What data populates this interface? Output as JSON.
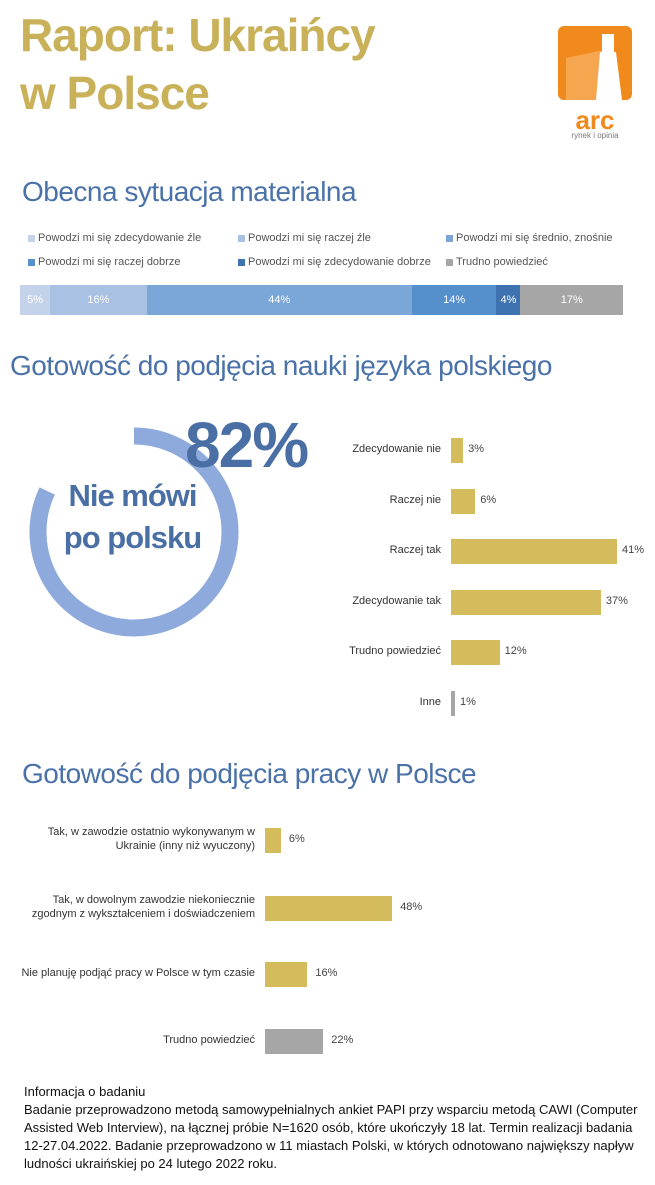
{
  "header": {
    "title_line1": "Raport: Ukraińcy",
    "title_line2": "w Polsce",
    "logo_text": "arc",
    "logo_subtext": "rynek i opinia"
  },
  "colors": {
    "gold": "#c9b15a",
    "blue_title": "#4a72a8",
    "gray": "#a6a6a6",
    "logo": "#f08a1c",
    "donut": "#8eaadc"
  },
  "chart_data": [
    {
      "type": "bar",
      "stacked": true,
      "orientation": "horizontal",
      "title": "Obecna sytuacja materialna",
      "legend_position": "top",
      "series": [
        {
          "name": "Powodzi mi się zdecydowanie źle",
          "value": 5,
          "label": "5%",
          "color": "#c5d3ea"
        },
        {
          "name": "Powodzi mi się raczej źle",
          "value": 16,
          "label": "16%",
          "color": "#a9c1e3"
        },
        {
          "name": "Powodzi mi się średnio, znośnie",
          "value": 44,
          "label": "44%",
          "color": "#7aa6d8"
        },
        {
          "name": "Powodzi mi się raczej dobrze",
          "value": 14,
          "label": "14%",
          "color": "#5590cc"
        },
        {
          "name": "Powodzi mi się zdecydowanie dobrze",
          "value": 4,
          "label": "4%",
          "color": "#3e72b0"
        },
        {
          "name": "Trudno powiedzieć",
          "value": 17,
          "label": "17%",
          "color": "#a6a6a6"
        }
      ]
    },
    {
      "type": "bar",
      "orientation": "horizontal",
      "title": "Gotowość do podjęcia nauki języka polskiego",
      "highlight": {
        "value": "82%",
        "text_line1": "Nie mówi",
        "text_line2": "po polsku",
        "fraction": 0.82
      },
      "categories": [
        "Zdecydowanie nie",
        "Raczej nie",
        "Raczej tak",
        "Zdecydowanie tak",
        "Trudno powiedzieć",
        "Inne"
      ],
      "values": [
        3,
        6,
        41,
        37,
        12,
        1
      ],
      "labels": [
        "3%",
        "6%",
        "41%",
        "37%",
        "12%",
        "1%"
      ],
      "colors": [
        "#d4bb5c",
        "#d4bb5c",
        "#d4bb5c",
        "#d4bb5c",
        "#d4bb5c",
        "#a6a6a6"
      ]
    },
    {
      "type": "bar",
      "orientation": "horizontal",
      "title": "Gotowość do podjęcia pracy w Polsce",
      "categories": [
        [
          "Tak, w zawodzie ostatnio wykonywanym w",
          "Ukrainie (inny niż wyuczony)"
        ],
        [
          "Tak, w dowolnym zawodzie niekoniecznie",
          "zgodnym z wykształceniem i doświadczeniem"
        ],
        [
          "Nie planuję podjąć pracy w Polsce w tym czasie"
        ],
        [
          "Trudno powiedzieć"
        ]
      ],
      "values": [
        6,
        48,
        16,
        22
      ],
      "labels": [
        "6%",
        "48%",
        "16%",
        "22%"
      ],
      "colors": [
        "#d4bb5c",
        "#d4bb5c",
        "#d4bb5c",
        "#a6a6a6"
      ]
    }
  ],
  "info": {
    "title": "Informacja o badaniu",
    "text": "Badanie przeprowadzono metodą samowypełnialnych ankiet PAPI przy wsparciu metodą CAWI (Computer Assisted Web Interview), na łącznej próbie N=1620 osób, które ukończyły 18 lat. Termin realizacji badania 12-27.04.2022. Badanie przeprowadzono w 11 miastach Polski, w których odnotowano największy napływ ludności ukraińskiej po 24 lutego 2022 roku."
  }
}
